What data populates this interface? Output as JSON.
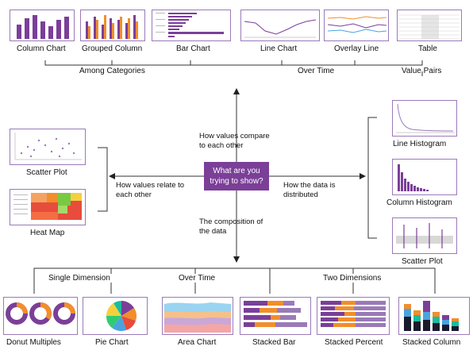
{
  "center": {
    "line1": "What are you",
    "line2": "trying to show?"
  },
  "questions": {
    "compare": [
      "How values compare",
      "to each other"
    ],
    "relate": [
      "How values relate to",
      "each other"
    ],
    "distribution": [
      "How the data is",
      "distributed"
    ],
    "composition": [
      "The composition of",
      "the data"
    ]
  },
  "groups": {
    "among_categories": "Among Categories",
    "over_time_top": "Over Time",
    "value_pairs": "Value Pairs",
    "single_dimension": "Single Dimension",
    "over_time_bottom": "Over Time",
    "two_dimensions": "Two Dimensions"
  },
  "charts": {
    "column_chart": "Column Chart",
    "grouped_column": "Grouped Column",
    "bar_chart": "Bar Chart",
    "line_chart": "Line Chart",
    "overlay_line": "Overlay Line",
    "table": "Table",
    "scatter_plot_left": "Scatter Plot",
    "heat_map": "Heat Map",
    "line_histogram": "Line Histogram",
    "column_histogram": "Column Histogram",
    "scatter_plot_right": "Scatter Plot",
    "donut_multiples": "Donut Multiples",
    "pie_chart": "Pie Chart",
    "area_chart": "Area Chart",
    "stacked_bar": "Stacked Bar",
    "stacked_percent": "Stacked Percent",
    "stacked_column": "Stacked Column"
  },
  "colors": {
    "purple": "#7b3f98",
    "orange": "#f28e2b",
    "border": "#9a7ab8",
    "line": "#333333"
  }
}
